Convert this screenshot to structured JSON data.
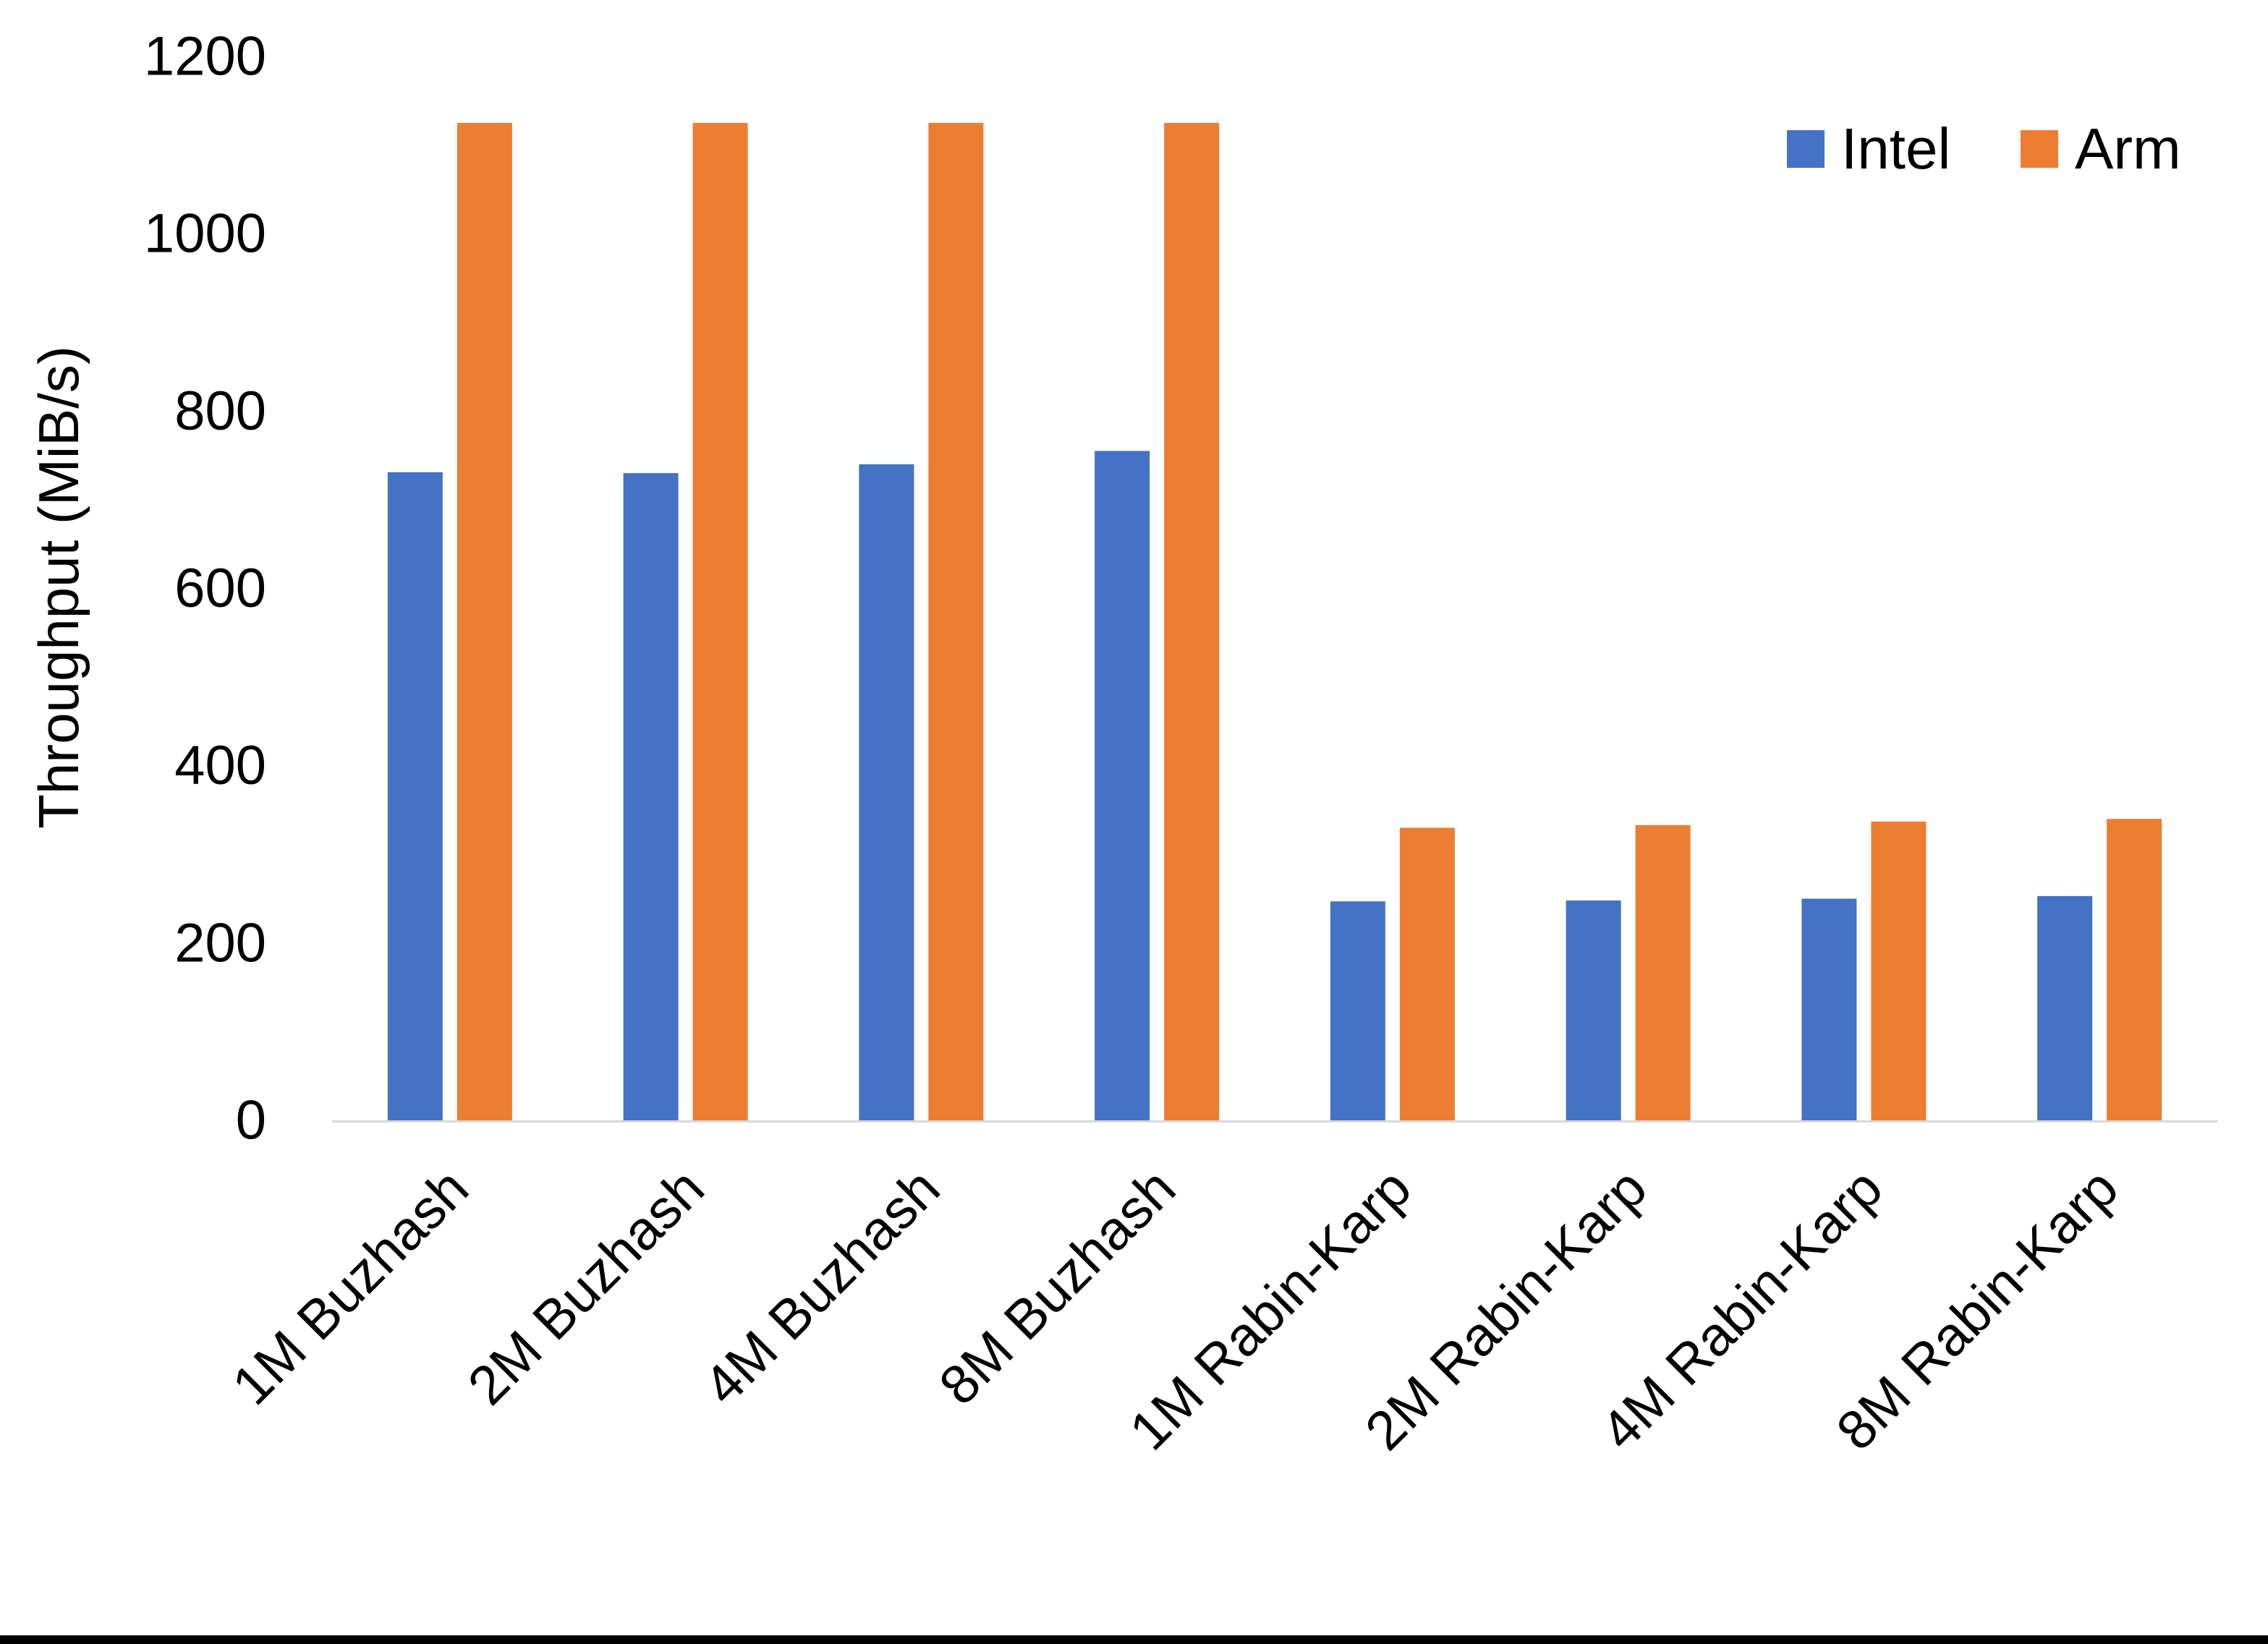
{
  "page": {
    "background": "#FFFFFF",
    "bottom_edge_color": "#000000"
  },
  "chart_data": {
    "type": "bar",
    "title": "",
    "ylabel": "Throughput (MiB/s)",
    "xlabel": "",
    "ylim": [
      0,
      1200
    ],
    "yticks": [
      0,
      200,
      400,
      600,
      800,
      1000,
      1200
    ],
    "grid": false,
    "legend_position": "top-right",
    "axis_line_color": "#D9D9D9",
    "text_color": "#000000",
    "categories": [
      "1M Buzhash",
      "2M Buzhash",
      "4M Buzhash",
      "8M Buzhash",
      "1M Rabin-Karp",
      "2M Rabin-Karp",
      "4M Rabin-Karp",
      "8M Rabin-Karp"
    ],
    "series": [
      {
        "name": "Intel",
        "color": "#4472C4",
        "values": [
          731,
          730,
          740,
          755,
          247,
          248,
          250,
          253
        ]
      },
      {
        "name": "Arm",
        "color": "#ED7D31",
        "values": [
          1125,
          1125,
          1125,
          1125,
          330,
          333,
          337,
          340
        ]
      }
    ]
  }
}
